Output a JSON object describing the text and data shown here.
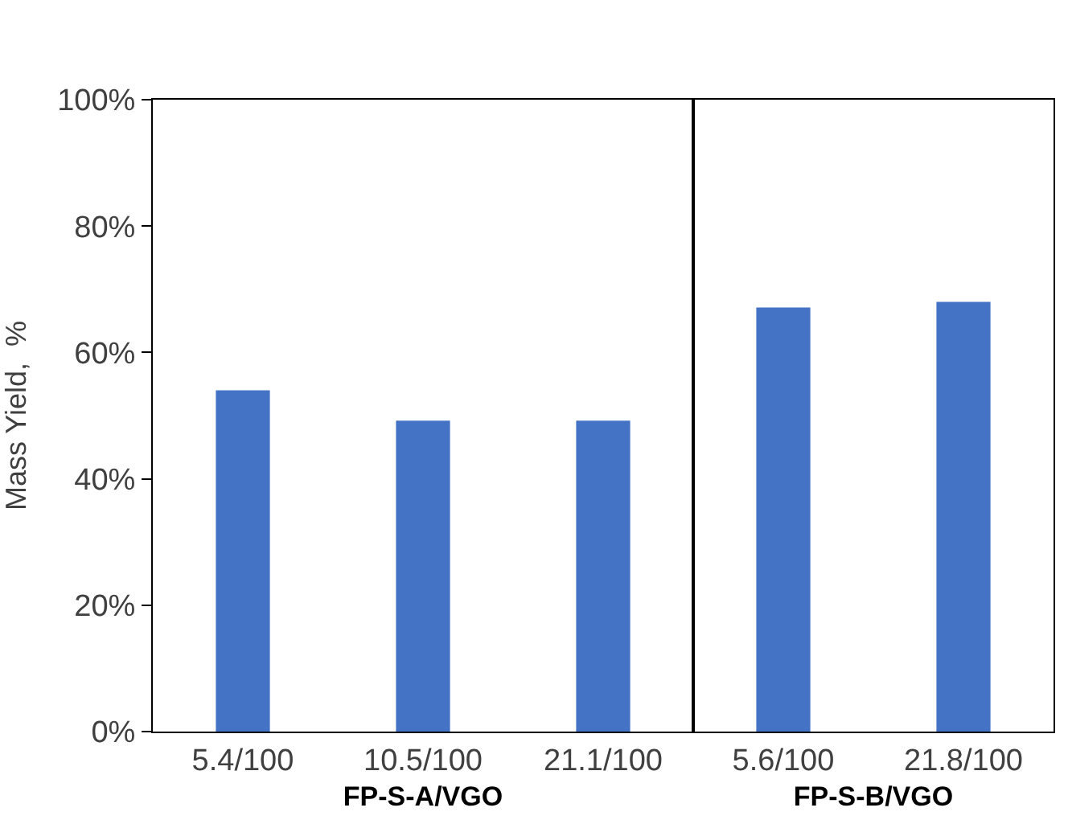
{
  "chart_data": [
    {
      "type": "bar",
      "xlabel": "FP-S-A/VGO",
      "ylabel": "Mass Yield,  %",
      "categories": [
        "5.4/100",
        "10.5/100",
        "21.1/100"
      ],
      "values": [
        54.0,
        49.2,
        49.2
      ],
      "color": "#4472c4",
      "ylim": [
        0,
        100
      ],
      "yticks": [
        {
          "value": 0,
          "label": "0%"
        },
        {
          "value": 20,
          "label": "20%"
        },
        {
          "value": 40,
          "label": "40%"
        },
        {
          "value": 60,
          "label": "60%"
        },
        {
          "value": 80,
          "label": "80%"
        },
        {
          "value": 100,
          "label": "100%"
        }
      ]
    },
    {
      "type": "bar",
      "xlabel": "FP-S-B/VGO",
      "categories": [
        "5.6/100",
        "21.8/100"
      ],
      "values": [
        67.1,
        68.0
      ],
      "color": "#4472c4",
      "ylim": [
        0,
        100
      ],
      "tick_labels": "x"
    }
  ]
}
